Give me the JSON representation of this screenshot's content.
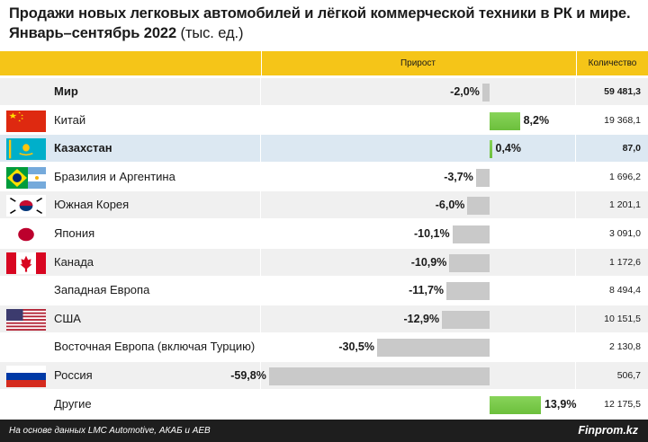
{
  "title": {
    "line1": "Продажи новых легковых автомобилей и лёгкой коммерческой техники в РК и мире.",
    "line2_main": "Январь–сентябрь 2022",
    "line2_unit": "(тыс. ед.)"
  },
  "header": {
    "growth_label": "Прирост",
    "qty_label": "Количество"
  },
  "chart_data": {
    "type": "bar",
    "orientation": "horizontal",
    "categories": [
      "Мир",
      "Китай",
      "Казахстан",
      "Бразилия и Аргентина",
      "Южная Корея",
      "Япония",
      "Канада",
      "Западная Европа",
      "США",
      "Восточная Европа (включая Турцию)",
      "Россия",
      "Другие"
    ],
    "series": [
      {
        "values": [
          -2.0,
          8.2,
          0.4,
          -3.7,
          -6.0,
          -10.1,
          -10.9,
          -11.7,
          -12.9,
          -30.5,
          -59.8,
          13.9
        ]
      }
    ],
    "value_labels": [
      "-2,0%",
      "8,2%",
      "0,4%",
      "-3,7%",
      "-6,0%",
      "-10,1%",
      "-10,9%",
      "-11,7%",
      "-12,9%",
      "-30,5%",
      "-59,8%",
      "13,9%"
    ],
    "quantity_labels": [
      "59 481,3",
      "19 368,1",
      "87,0",
      "1 696,2",
      "1 201,1",
      "3 091,0",
      "1 172,6",
      "8 494,4",
      "10 151,5",
      "2 130,8",
      "506,7",
      "12 175,5"
    ],
    "flags": [
      "",
      "china-flag",
      "kazakhstan-flag",
      "brazil-argentina-flag",
      "south-korea-flag",
      "japan-flag",
      "canada-flag",
      "",
      "usa-flag",
      "",
      "russia-flag",
      ""
    ],
    "bold_rows": [
      0,
      2
    ],
    "highlight_row": 2,
    "colors": {
      "negative": "#c9c9c9",
      "positive": "#6cbf3c",
      "header": "#f5c518",
      "highlight": "#dce8f2",
      "footer": "#1e1e1e"
    }
  },
  "footer": {
    "source": "На основе данных LMC Automotive, АКАБ и AEB",
    "brand": "Finprom.kz"
  }
}
